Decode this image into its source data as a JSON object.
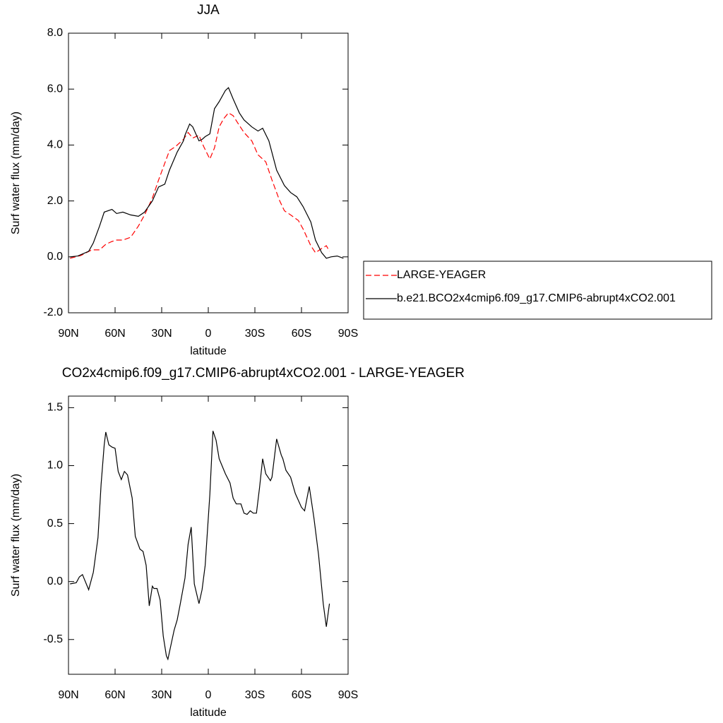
{
  "chart_data": [
    {
      "type": "line",
      "title": "JJA",
      "ylabel": "Surf water flux (mm/day)",
      "xlabel": "latitude",
      "xlim": [
        90,
        -90
      ],
      "xticks": [
        {
          "value": 90,
          "label": "90N"
        },
        {
          "value": 60,
          "label": "60N"
        },
        {
          "value": 30,
          "label": "30N"
        },
        {
          "value": 0,
          "label": "0"
        },
        {
          "value": -30,
          "label": "30S"
        },
        {
          "value": -60,
          "label": "60S"
        },
        {
          "value": -90,
          "label": "90S"
        }
      ],
      "ylim": [
        -2,
        8
      ],
      "yticks": [
        {
          "value": -2,
          "label": "-2.0"
        },
        {
          "value": 0,
          "label": "0.0"
        },
        {
          "value": 2,
          "label": "2.0"
        },
        {
          "value": 4,
          "label": "4.0"
        },
        {
          "value": 6,
          "label": "6.0"
        },
        {
          "value": 8,
          "label": "8.0"
        }
      ],
      "series": [
        {
          "name": "LARGE-YEAGER",
          "color": "#ff0000",
          "dashed": true,
          "x": [
            89,
            82,
            75,
            70,
            66,
            62,
            59,
            55,
            50,
            45,
            41,
            36,
            32,
            28,
            25,
            21,
            16,
            13,
            10,
            6,
            3,
            -1,
            -4,
            -7,
            -10,
            -13,
            -16,
            -20,
            -23,
            -28,
            -32,
            -37,
            -41,
            -46,
            -49,
            -53,
            -58,
            -61,
            -66,
            -69,
            -73,
            -76,
            -78
          ],
          "values": [
            -0.05,
            0.05,
            0.25,
            0.25,
            0.45,
            0.55,
            0.6,
            0.6,
            0.7,
            1.1,
            1.5,
            2.1,
            2.75,
            3.35,
            3.8,
            3.95,
            4.2,
            4.45,
            4.25,
            4.35,
            3.95,
            3.5,
            3.9,
            4.65,
            4.95,
            5.15,
            5.05,
            4.7,
            4.45,
            4.15,
            3.65,
            3.4,
            2.75,
            2.0,
            1.65,
            1.5,
            1.3,
            1.0,
            0.4,
            0.15,
            0.3,
            0.4,
            0.2
          ]
        },
        {
          "name": "b.e21.BCO2x4cmip6.f09_g17.CMIP6-abrupt4xCO2.001",
          "color": "#000000",
          "dashed": false,
          "x": [
            89,
            84,
            77,
            74,
            70,
            67,
            62,
            59,
            55,
            50,
            45,
            41,
            36,
            32,
            28,
            25,
            20,
            16,
            15,
            12,
            10,
            6,
            4,
            2,
            -1,
            -4,
            -7,
            -11,
            -13,
            -16,
            -20,
            -23,
            -28,
            -32,
            -35,
            -39,
            -44,
            -49,
            -53,
            -57,
            -61,
            -66,
            -69,
            -73,
            -76,
            -79,
            -83,
            -87
          ],
          "values": [
            0.0,
            0.03,
            0.2,
            0.5,
            1.1,
            1.6,
            1.7,
            1.55,
            1.6,
            1.5,
            1.45,
            1.6,
            2.0,
            2.5,
            2.6,
            3.1,
            3.75,
            4.15,
            4.35,
            4.75,
            4.65,
            4.15,
            4.2,
            4.3,
            4.4,
            5.3,
            5.55,
            5.95,
            6.05,
            5.65,
            5.15,
            4.9,
            4.65,
            4.5,
            4.6,
            4.15,
            3.1,
            2.55,
            2.3,
            2.15,
            1.8,
            1.25,
            0.6,
            0.15,
            -0.05,
            0.0,
            0.03,
            -0.05
          ]
        }
      ]
    },
    {
      "type": "line",
      "title": "CO2x4cmip6.f09_g17.CMIP6-abrupt4xCO2.001 - LARGE-YEAGER",
      "ylabel": "Surf water flux (mm/day)",
      "xlabel": "latitude",
      "xlim": [
        90,
        -90
      ],
      "xticks": [
        {
          "value": 90,
          "label": "90N"
        },
        {
          "value": 60,
          "label": "60N"
        },
        {
          "value": 30,
          "label": "30N"
        },
        {
          "value": 0,
          "label": "0"
        },
        {
          "value": -30,
          "label": "30S"
        },
        {
          "value": -60,
          "label": "60S"
        },
        {
          "value": -90,
          "label": "90S"
        }
      ],
      "ylim": [
        -0.8,
        1.6
      ],
      "yticks": [
        -0.5,
        {
          "value": 0,
          "label": "0.0"
        },
        0.5,
        {
          "value": 1,
          "label": "1.0"
        },
        1.5
      ],
      "series": [
        {
          "color": "#000000",
          "dashed": false,
          "x": [
            89,
            85,
            83,
            81,
            77,
            74,
            71,
            69,
            67,
            66,
            64,
            62,
            60,
            58,
            56,
            54,
            52,
            49,
            47,
            44,
            42,
            40,
            38,
            36,
            35,
            33,
            31,
            29,
            27,
            26,
            22,
            20,
            18,
            15,
            13,
            11,
            9,
            6,
            4,
            2,
            -1,
            -3,
            -5,
            -7,
            -11,
            -14,
            -16,
            -18,
            -21,
            -23,
            -25,
            -27,
            -29,
            -31,
            -33,
            -35,
            -37,
            -40,
            -41,
            -44,
            -47,
            -48,
            -50,
            -53,
            -56,
            -60,
            -62,
            -65,
            -68,
            -71,
            -74,
            -76,
            -78
          ],
          "values": [
            -0.02,
            -0.01,
            0.04,
            0.06,
            -0.07,
            0.08,
            0.38,
            0.84,
            1.18,
            1.29,
            1.18,
            1.16,
            1.15,
            0.95,
            0.88,
            0.95,
            0.92,
            0.72,
            0.39,
            0.28,
            0.26,
            0.14,
            -0.21,
            -0.04,
            -0.06,
            -0.06,
            -0.16,
            -0.47,
            -0.64,
            -0.67,
            -0.42,
            -0.33,
            -0.19,
            0.03,
            0.32,
            0.47,
            -0.02,
            -0.19,
            -0.07,
            0.14,
            0.75,
            1.3,
            1.22,
            1.06,
            0.93,
            0.85,
            0.72,
            0.67,
            0.67,
            0.59,
            0.58,
            0.61,
            0.59,
            0.59,
            0.81,
            1.06,
            0.93,
            0.87,
            0.9,
            1.23,
            1.09,
            1.06,
            0.96,
            0.9,
            0.76,
            0.64,
            0.61,
            0.82,
            0.55,
            0.23,
            -0.19,
            -0.39,
            -0.19
          ]
        }
      ]
    }
  ]
}
